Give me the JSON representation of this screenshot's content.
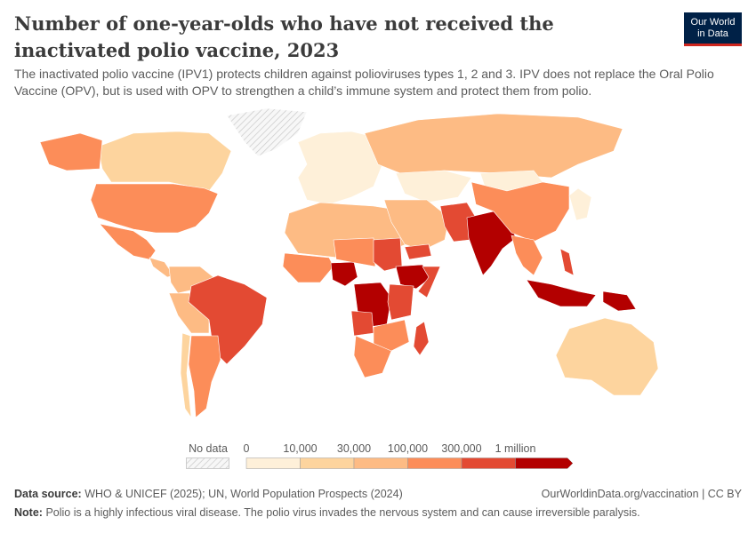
{
  "header": {
    "title": "Number of one-year-olds who have not received the inactivated polio vaccine, 2023",
    "subtitle": "The inactivated polio vaccine (IPV1) protects children against polioviruses types 1, 2 and 3. IPV does not replace the Oral Polio Vaccine (OPV), but is used with OPV to strengthen a child’s immune system and protect them from polio.",
    "logo_line1": "Our World",
    "logo_line2": "in Data"
  },
  "legend": {
    "no_data_label": "No data",
    "no_data_pattern": "hatched",
    "ticks": [
      "0",
      "10,000",
      "30,000",
      "100,000",
      "300,000",
      "1 million"
    ],
    "colors": [
      "#fef0d9",
      "#fdd49e",
      "#fdbb84",
      "#fc8d59",
      "#e34a33",
      "#b30000"
    ]
  },
  "chart_data": {
    "type": "choropleth",
    "year": 2023,
    "bins": [
      "0–10,000",
      "10,000–30,000",
      "30,000–100,000",
      "100,000–300,000",
      "300,000–1 million",
      "1 million+"
    ],
    "country_bins": {
      "Greenland": null,
      "Canada": 1,
      "United States": 3,
      "Mexico": 3,
      "Central America": 2,
      "Colombia & Venezuela": 2,
      "Peru & Bolivia": 2,
      "Brazil": 4,
      "Argentina": 3,
      "Chile": 1,
      "Europe": 0,
      "Russia": 2,
      "Kazakhstan & Central Asia": 0,
      "Mongolia": 0,
      "North Africa": 2,
      "West Africa": 3,
      "Nigeria": 5,
      "Chad & Niger": 3,
      "Sudan": 4,
      "Ethiopia": 5,
      "Somalia": 4,
      "DR Congo": 5,
      "Angola": 4,
      "Tanzania & Kenya": 4,
      "Southern Africa": 3,
      "South Africa": 3,
      "Madagascar": 4,
      "Middle East": 2,
      "Yemen": 4,
      "Afghanistan & Pakistan": 4,
      "India": 5,
      "China": 3,
      "Southeast Asia": 3,
      "Philippines": 4,
      "Indonesia": 5,
      "Papua New Guinea": 5,
      "Japan & Korea": 0,
      "Australia": 1
    }
  },
  "footer": {
    "source_label": "Data source:",
    "source": "WHO & UNICEF (2025); UN, World Population Prospects (2024)",
    "url": "OurWorldinData.org/vaccination | CC BY",
    "note_label": "Note:",
    "note": "Polio is a highly infectious viral disease. The polio virus invades the nervous system and can cause irreversible paralysis."
  }
}
